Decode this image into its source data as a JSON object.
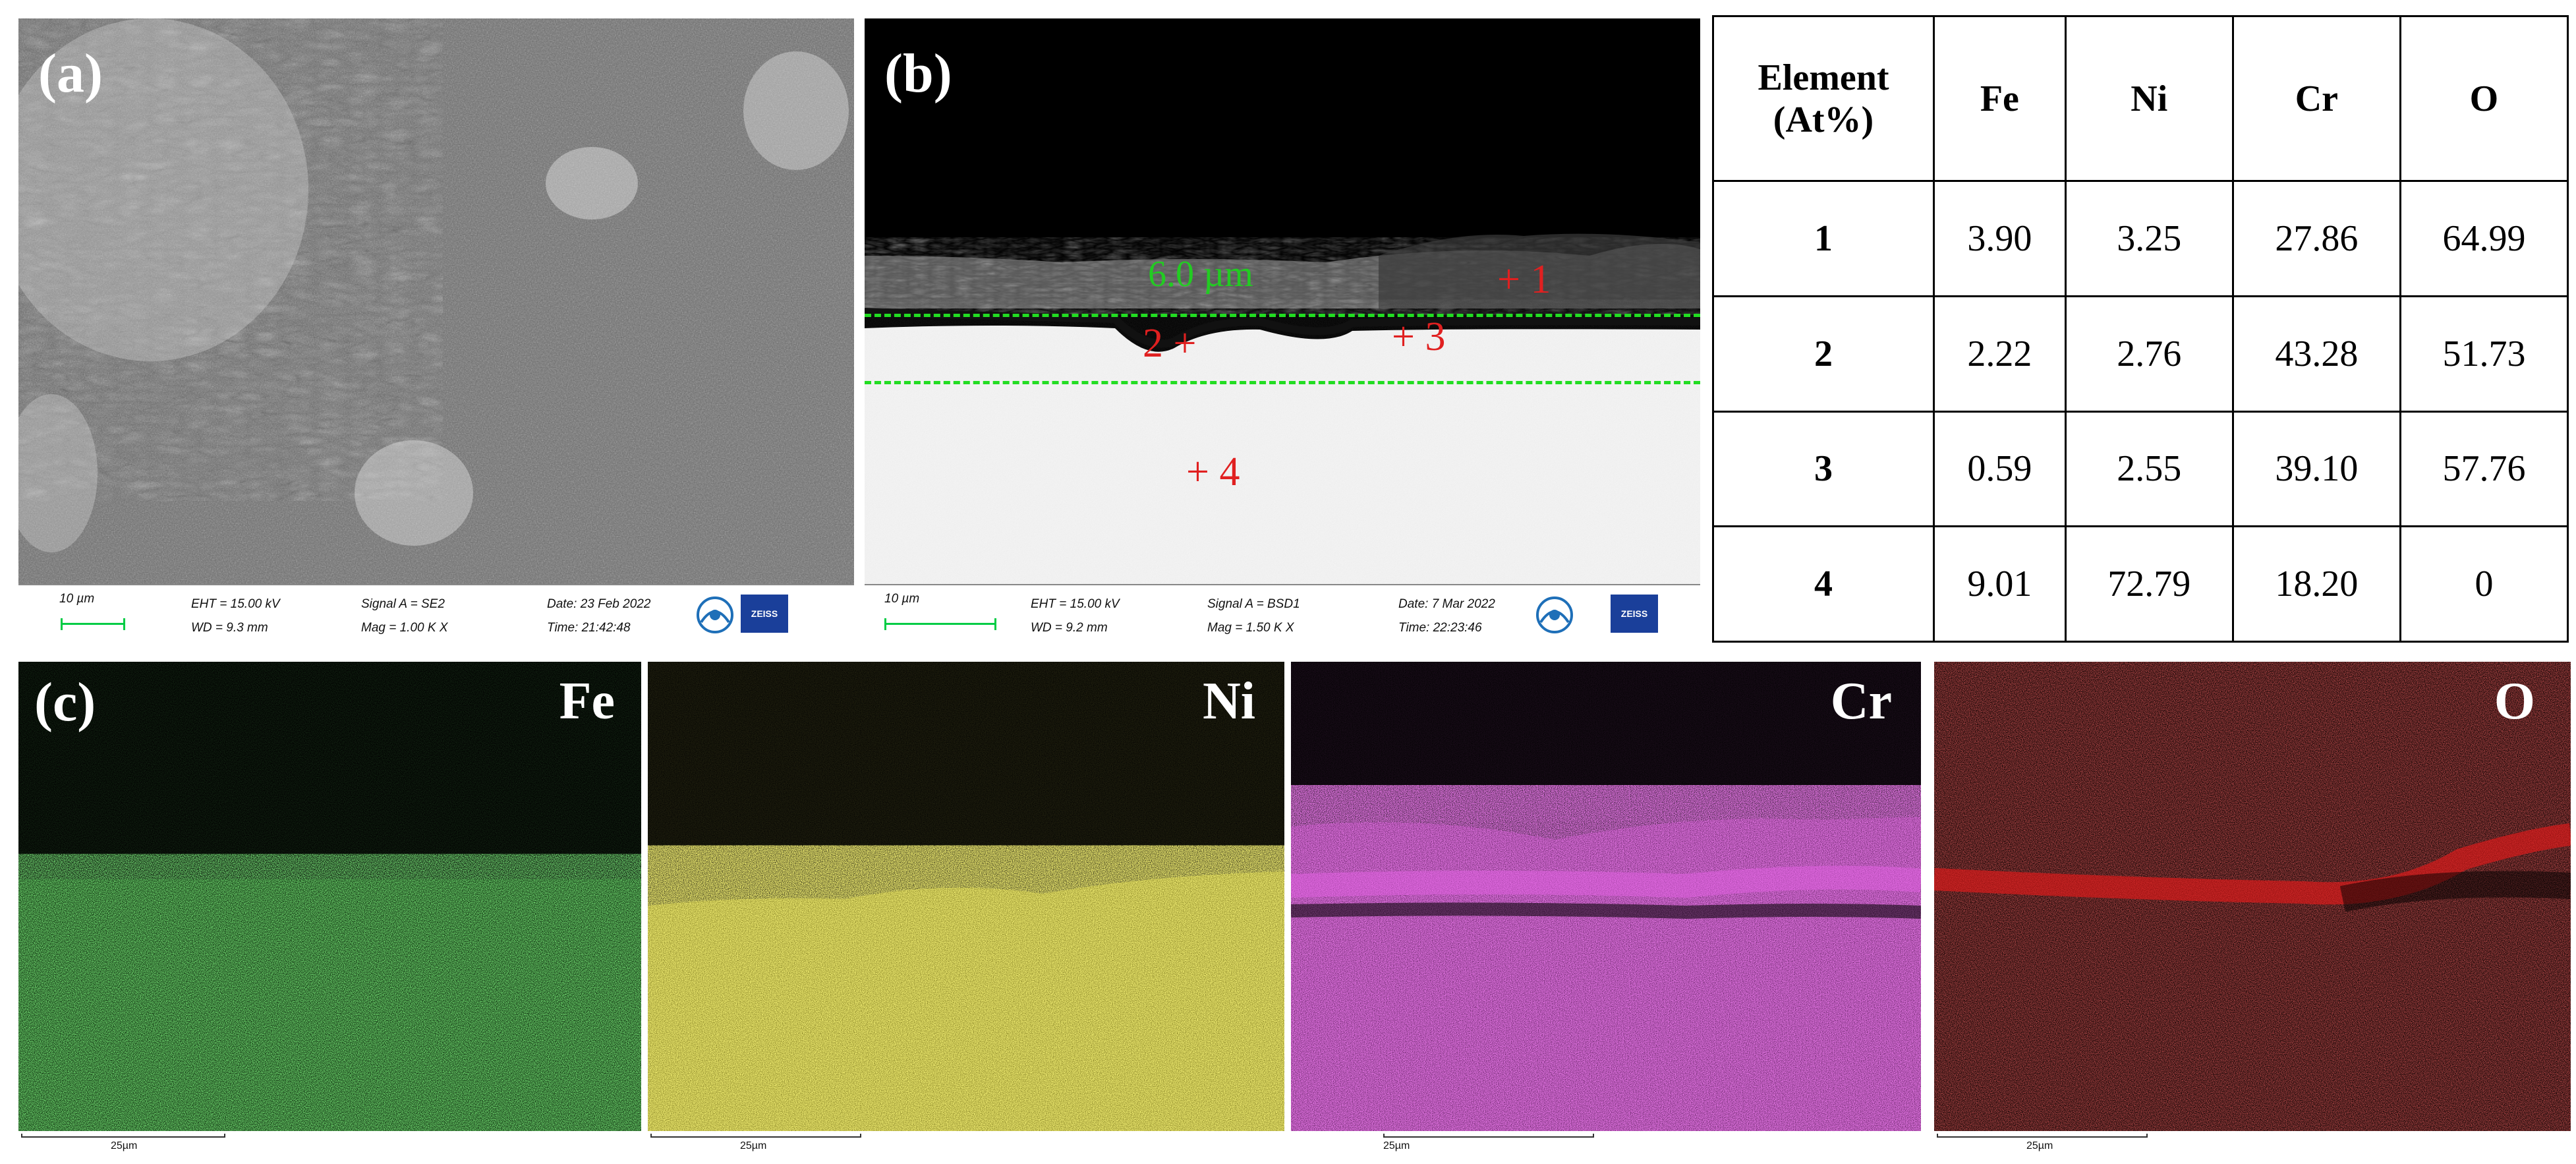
{
  "panel_a": {
    "label": "(a)",
    "scale": "10 µm",
    "eht": "EHT = 15.00 kV",
    "wd": "WD = 9.3 mm",
    "signal": "Signal A = SE2",
    "mag": "Mag =  1.00 K X",
    "date": "Date: 23 Feb 2022",
    "time": "Time: 21:42:48",
    "brand": "ZEISS"
  },
  "panel_b": {
    "label": "(b)",
    "thickness": "6.0 µm",
    "markers": [
      "1",
      "2",
      "3",
      "4"
    ],
    "scale": "10 µm",
    "eht": "EHT = 15.00 kV",
    "wd": "WD = 9.2 mm",
    "signal": "Signal A = BSD1",
    "mag": "Mag =   1.50 K X",
    "date": "Date: 7 Mar 2022",
    "time": "Time: 22:23:46",
    "brand": "ZEISS"
  },
  "table": {
    "header_line1": "Element",
    "header_line2": "(At%)",
    "columns": [
      "Fe",
      "Ni",
      "Cr",
      "O"
    ],
    "rows": [
      {
        "point": "1",
        "values": [
          "3.90",
          "3.25",
          "27.86",
          "64.99"
        ]
      },
      {
        "point": "2",
        "values": [
          "2.22",
          "2.76",
          "43.28",
          "51.73"
        ]
      },
      {
        "point": "3",
        "values": [
          "0.59",
          "2.55",
          "39.10",
          "57.76"
        ]
      },
      {
        "point": "4",
        "values": [
          "9.01",
          "72.79",
          "18.20",
          "0"
        ]
      }
    ]
  },
  "panel_c": {
    "label": "(c)",
    "maps": [
      {
        "element": "Fe",
        "scale": "25µm",
        "color": "#2fbf2f"
      },
      {
        "element": "Ni",
        "scale": "25µm",
        "color": "#d4d02a"
      },
      {
        "element": "Cr",
        "scale": "25µm",
        "color": "#c62fc6"
      },
      {
        "element": "O",
        "scale": "25µm",
        "color": "#d41f1f"
      }
    ]
  }
}
